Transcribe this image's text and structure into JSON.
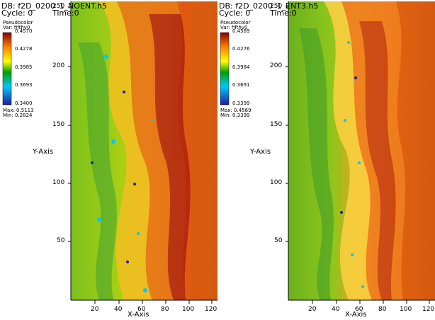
{
  "panels": [
    {
      "db_label": "DB: f2D_0200_1_NOENT.h5",
      "cycle_label": "Cycle: 0",
      "time_label": "Time:0",
      "plot_type": "Pseudocolor",
      "var_label": "Var: fifthv0",
      "legend_ticks": [
        "0.4570",
        "0.4278",
        "0.3985",
        "0.3693",
        "0.3400"
      ],
      "max_label": "Max:  0.5113",
      "min_label": "Min:  0.2824",
      "y_axis_label": "Y-Axis",
      "x_axis_label": "X-Axis",
      "y_ticks": [
        "250",
        "200",
        "150",
        "100",
        "50"
      ],
      "x_ticks": [
        "20",
        "40",
        "60",
        "80",
        "100",
        "120"
      ]
    },
    {
      "db_label": "DB: f2D_0200_1_ENT3.h5",
      "cycle_label": "Cycle: 0",
      "time_label": "Time:0",
      "plot_type": "Pseudocolor",
      "var_label": "Var: fifthv0",
      "legend_ticks": [
        "0.4569",
        "0.4276",
        "0.3984",
        "0.3691",
        "0.3399"
      ],
      "max_label": "Max:  0.4569",
      "min_label": "Min:  0.3399",
      "y_axis_label": "Y-Axis",
      "x_axis_label": "X-Axis",
      "y_ticks": [
        "250",
        "200",
        "150",
        "100",
        "50"
      ],
      "x_ticks": [
        "20",
        "40",
        "60",
        "80",
        "100",
        "120"
      ]
    }
  ],
  "colors": {
    "colormap": [
      "#1f1f9a",
      "#00c8ff",
      "#00a000",
      "#ffff00",
      "#ff8000",
      "#8b0000"
    ],
    "field_background": "#d45a10",
    "mix_green": "#8fc61c"
  }
}
